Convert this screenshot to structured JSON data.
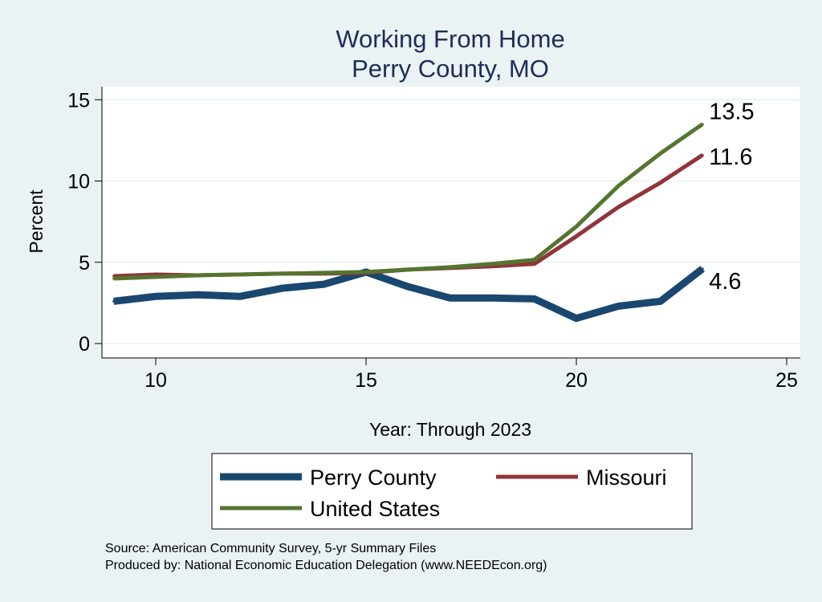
{
  "chart_data": {
    "type": "line",
    "title": "Working From Home",
    "subtitle": "Perry County, MO",
    "xlabel": "Year: Through 2023",
    "ylabel": "Percent",
    "xlim": [
      8.7,
      25.3
    ],
    "ylim": [
      -0.8,
      15.2
    ],
    "xticks": [
      10,
      15,
      20,
      25
    ],
    "yticks": [
      0,
      5,
      10,
      15
    ],
    "grid": true,
    "legend_position": "bottom",
    "x": [
      9,
      10,
      11,
      12,
      13,
      14,
      15,
      16,
      17,
      18,
      19,
      20,
      21,
      22,
      23
    ],
    "series": [
      {
        "name": "Perry County",
        "color": "#1a476f",
        "values": [
          2.6,
          2.9,
          3.0,
          2.9,
          3.4,
          3.65,
          4.4,
          3.5,
          2.8,
          2.8,
          2.75,
          1.55,
          2.3,
          2.6,
          4.6
        ],
        "end_label": "4.6"
      },
      {
        "name": "Missouri",
        "color": "#90353b",
        "values": [
          4.15,
          4.25,
          4.2,
          4.25,
          4.3,
          4.3,
          4.35,
          4.55,
          4.65,
          4.75,
          4.9,
          6.6,
          8.4,
          9.9,
          11.6
        ],
        "end_label": "11.6"
      },
      {
        "name": "United States",
        "color": "#55752f",
        "values": [
          4.0,
          4.1,
          4.2,
          4.25,
          4.3,
          4.35,
          4.4,
          4.55,
          4.7,
          4.9,
          5.15,
          7.2,
          9.7,
          11.7,
          13.5
        ],
        "end_label": "13.5"
      }
    ],
    "notes": [
      "Source: American Community Survey, 5-yr Summary Files",
      "Produced by: National Economic Education Delegation (www.NEEDEcon.org)"
    ]
  }
}
